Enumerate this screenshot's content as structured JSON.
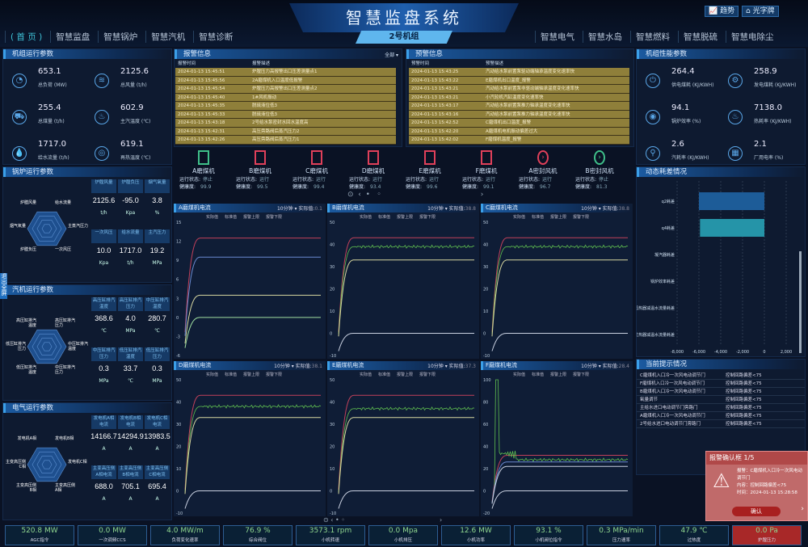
{
  "header": {
    "title": "智慧监盘系统",
    "unit": "2号机组",
    "buttons": [
      "趋势",
      "光字牌"
    ],
    "nav_left": [
      "( 首 页 )",
      "智慧监盘",
      "智慧锅炉",
      "智慧汽机",
      "智慧诊断"
    ],
    "nav_right": [
      "智慧电气",
      "智慧水岛",
      "智慧燃料",
      "智慧脱硫",
      "智慧电除尘"
    ]
  },
  "side_tab": "退出全屏",
  "unit_params": {
    "title": "机组运行参数",
    "items": [
      {
        "value": "653.1",
        "label": "总负荷 (MW)",
        "icon": "gauge-icon"
      },
      {
        "value": "2125.6",
        "label": "总风量 (t/h)",
        "icon": "wind-icon"
      },
      {
        "value": "255.4",
        "label": "总煤量 (t/h)",
        "icon": "coal-cart-icon"
      },
      {
        "value": "602.9",
        "label": "主汽温度 (℃)",
        "icon": "steam-icon"
      },
      {
        "value": "1717.0",
        "label": "给水流量 (t/h)",
        "icon": "water-drops-icon"
      },
      {
        "value": "619.1",
        "label": "再热温度 (℃)",
        "icon": "thermometer-icon"
      }
    ]
  },
  "boiler": {
    "title": "锅炉运行参数",
    "radar": [
      "炉膛风量",
      "给水流量",
      "主蒸汽压力",
      "一次风压",
      "炉膛负压",
      "烟气氧量"
    ],
    "cells": [
      {
        "h": "炉膛风量",
        "v": "2125.6",
        "u": "t/h"
      },
      {
        "h": "炉膛负压",
        "v": "-95.0",
        "u": "Kpa"
      },
      {
        "h": "烟气氧量",
        "v": "3.8",
        "u": "%"
      },
      {
        "h": "一次风压",
        "v": "10.0",
        "u": "Kpa"
      },
      {
        "h": "给水流量",
        "v": "1717.0",
        "u": "t/h"
      },
      {
        "h": "主汽压力",
        "v": "19.2",
        "u": "MPa"
      }
    ]
  },
  "turbine": {
    "title": "汽机运行参数",
    "radar": [
      "高压缸排汽温度",
      "高压缸排汽压力",
      "中压缸排汽温度",
      "中压缸排汽压力",
      "低压缸排汽温度",
      "低压缸排汽压力"
    ],
    "cells": [
      {
        "h": "高压缸排汽温度",
        "v": "368.6",
        "u": "℃"
      },
      {
        "h": "高压缸排汽压力",
        "v": "4.0",
        "u": "MPa"
      },
      {
        "h": "中压缸排汽温度",
        "v": "280.7",
        "u": "℃"
      },
      {
        "h": "中压缸排汽压力",
        "v": "0.3",
        "u": "MPa"
      },
      {
        "h": "低压缸排汽温度",
        "v": "33.7",
        "u": "℃"
      },
      {
        "h": "低压缸排汽压力",
        "v": "0.3",
        "u": "MPa"
      }
    ]
  },
  "electric": {
    "title": "电气运行参数",
    "radar": [
      "发电机A相",
      "发电机B相",
      "发电机C相",
      "主变高压侧A相",
      "主变高压侧B相",
      "主变高压侧C相"
    ],
    "cells": [
      {
        "h": "发电机A相电流",
        "v": "14166.7",
        "u": "A"
      },
      {
        "h": "发电机B相电流",
        "v": "14294.9",
        "u": "A"
      },
      {
        "h": "发电机C相电流",
        "v": "13983.5",
        "u": "A"
      },
      {
        "h": "主变高压侧A相电流",
        "v": "688.0",
        "u": "A"
      },
      {
        "h": "主变高压侧B相电流",
        "v": "705.1",
        "u": "A"
      },
      {
        "h": "主变高压侧C相电流",
        "v": "695.4",
        "u": "A"
      }
    ]
  },
  "alarms": {
    "title": "报警信息",
    "filter": "全部",
    "cols": [
      "报警时间",
      "报警描述"
    ],
    "rows": [
      [
        "2024-01-13 15:45:51",
        "炉膛压力高报警出口压差测量点1"
      ],
      [
        "2024-01-13 15:45:56",
        "2A磨煤机入口温度低报警"
      ],
      [
        "2024-01-13 15:45:54",
        "炉膛压力高报警出口压差测量点2"
      ],
      [
        "2024-01-13 15:45:40",
        "1#风机振动"
      ],
      [
        "2024-01-13 15:45:35",
        "脱硫液位低3"
      ],
      [
        "2024-01-13 15:45:33",
        "脱硫液位低3"
      ],
      [
        "2024-01-13 15:43:18",
        "2号给水泵密封水回水温度高"
      ],
      [
        "2024-01-13 15:42:31",
        "高压旁路阀后蒸汽压力2"
      ],
      [
        "2024-01-13 15:42:26",
        "高压旁路阀后蒸汽压力1"
      ]
    ]
  },
  "warnings": {
    "title": "预警信息",
    "cols": [
      "预警时间",
      "预警描述"
    ],
    "rows": [
      [
        "2024-01-13 15:43:25",
        "汽动给水泵前置泵驱动端轴承温度变化速率快"
      ],
      [
        "2024-01-13 15:43:22",
        "E磨煤机出口温度_报警"
      ],
      [
        "2024-01-13 15:43:21",
        "汽动给水泵前置泵非驱动端轴承温度变化速率快"
      ],
      [
        "2024-01-13 15:43:21",
        "小汽轮机汽缸温度变化速率快"
      ],
      [
        "2024-01-13 15:43:17",
        "汽动给水泵前置泵推力轴承温度变化速率快"
      ],
      [
        "2024-01-13 15:43:16",
        "汽动给水泵前置泵推力轴承温度变化速率快"
      ],
      [
        "2024-01-13 15:42:52",
        "C磨煤机出口温度_报警"
      ],
      [
        "2024-01-13 15:42:20",
        "A磨煤机电机振动偏差过大"
      ],
      [
        "2024-01-13 15:42:02",
        "F磨煤机温度_报警"
      ]
    ]
  },
  "devices": {
    "status_label": "运行状态:",
    "health_label": "健康度:",
    "items": [
      {
        "name": "A磨煤机",
        "status": "停止",
        "health": "99.9",
        "color": "#3fc08a",
        "icon": "coal-mill-icon"
      },
      {
        "name": "B磨煤机",
        "status": "运行",
        "health": "99.5",
        "color": "#e0405a",
        "icon": "coal-mill-icon"
      },
      {
        "name": "C磨煤机",
        "status": "运行",
        "health": "99.4",
        "color": "#e0405a",
        "icon": "coal-mill-icon"
      },
      {
        "name": "D磨煤机",
        "status": "运行",
        "health": "93.4",
        "color": "#e0405a",
        "icon": "coal-mill-icon"
      },
      {
        "name": "E磨煤机",
        "status": "运行",
        "health": "99.6",
        "color": "#e0405a",
        "icon": "coal-mill-icon"
      },
      {
        "name": "F磨煤机",
        "status": "运行",
        "health": "99.1",
        "color": "#e0405a",
        "icon": "coal-mill-icon"
      },
      {
        "name": "A密封风机",
        "status": "运行",
        "health": "96.7",
        "color": "#e0405a",
        "icon": "fan-icon"
      },
      {
        "name": "B密封风机",
        "status": "停止",
        "health": "81.3",
        "color": "#3fc08a",
        "icon": "fan-icon"
      }
    ]
  },
  "chart_legend": [
    "实际值",
    "标准值",
    "报警上限",
    "报警下限"
  ],
  "chart_period": "10分钟",
  "actual_label": "实际值:",
  "chart_data": [
    {
      "type": "line",
      "title": "A磨煤机电流",
      "actual": "0.1",
      "ylim": [
        -6,
        15
      ],
      "ticks": [
        -6,
        -3,
        0,
        3,
        6,
        9,
        12,
        15
      ],
      "series": [
        {
          "name": "报警上限",
          "level": 12.5,
          "color": "#c0405a"
        },
        {
          "name": "标准值",
          "level": 9.5,
          "color": "#6a8ad0"
        },
        {
          "name": "报警下限",
          "level": 3.5,
          "color": "#d8d8a0"
        },
        {
          "name": "实际值",
          "level": 0,
          "color": "#a0e0a0"
        }
      ]
    },
    {
      "type": "line",
      "title": "B磨煤机电流",
      "actual": "38.8",
      "ylim": [
        -10,
        50
      ],
      "ticks": [
        -10,
        0,
        10,
        20,
        30,
        40,
        50
      ],
      "series": [
        {
          "name": "报警上限",
          "level": 43,
          "color": "#c0405a"
        },
        {
          "name": "实际值",
          "level": 39,
          "color": "#60c050",
          "noise": true
        },
        {
          "name": "标准值",
          "level": 33,
          "color": "#d8d8a0"
        },
        {
          "name": "报警下限",
          "level": 0,
          "color": "#c8d0e0"
        }
      ]
    },
    {
      "type": "line",
      "title": "C磨煤机电流",
      "actual": "38.8",
      "ylim": [
        -10,
        50
      ],
      "ticks": [
        -10,
        0,
        10,
        20,
        30,
        40,
        50
      ],
      "series": [
        {
          "name": "报警上限",
          "level": 43,
          "color": "#c0405a"
        },
        {
          "name": "实际值",
          "level": 39,
          "color": "#60c050",
          "noise": true
        },
        {
          "name": "标准值",
          "level": 33,
          "color": "#d8d8a0"
        },
        {
          "name": "报警下限",
          "level": 0,
          "color": "#c8d0e0"
        }
      ]
    },
    {
      "type": "line",
      "title": "D磨煤机电流",
      "actual": "38.1",
      "ylim": [
        -10,
        50
      ],
      "ticks": [
        -10,
        0,
        10,
        20,
        30,
        40,
        50
      ],
      "series": [
        {
          "name": "报警上限",
          "level": 43,
          "color": "#c0405a"
        },
        {
          "name": "实际值",
          "level": 38,
          "color": "#60c050",
          "noise": true
        },
        {
          "name": "标准值",
          "level": 33,
          "color": "#d8d8a0"
        },
        {
          "name": "报警下限",
          "level": 0,
          "color": "#c8d0e0"
        }
      ]
    },
    {
      "type": "line",
      "title": "E磨煤机电流",
      "actual": "37.3",
      "ylim": [
        -10,
        50
      ],
      "ticks": [
        -10,
        0,
        10,
        20,
        30,
        40,
        50
      ],
      "series": [
        {
          "name": "报警上限",
          "level": 43,
          "color": "#c0405a"
        },
        {
          "name": "实际值",
          "level": 37,
          "color": "#60c050",
          "noise": true
        },
        {
          "name": "标准值",
          "level": 33,
          "color": "#d8d8a0"
        },
        {
          "name": "报警下限",
          "level": 0,
          "color": "#c8d0e0"
        }
      ]
    },
    {
      "type": "line",
      "title": "F磨煤机电流",
      "actual": "28.4",
      "ylim": [
        -20,
        100
      ],
      "ticks": [
        -20,
        0,
        20,
        40,
        60,
        80,
        100
      ],
      "series": [
        {
          "name": "报警上限",
          "level": 32,
          "color": "#c0405a"
        },
        {
          "name": "实际值",
          "level": 28,
          "color": "#60c050",
          "noise": true,
          "spike": 100
        },
        {
          "name": "标准值",
          "level": 26,
          "color": "#6a8ad0"
        },
        {
          "name": "报警下限",
          "level": 22,
          "color": "#c8d0e0"
        },
        {
          "name": "",
          "level": 0,
          "color": "#c8d0e0"
        }
      ]
    },
    {
      "type": "bar",
      "title": "动态耗差情况",
      "orientation": "horizontal",
      "categories": [
        "q2耗差",
        "q4耗差",
        "凝汽器耗差",
        "锅炉效率耗差",
        "再热器减温水流量耗差",
        "过热器减温水流量耗差"
      ],
      "values": [
        -6000,
        -5900,
        0,
        0,
        0,
        0
      ],
      "xlim": [
        -8000,
        2000
      ],
      "ticks": [
        "-8,000",
        "-6,000",
        "-4,000",
        "-2,000",
        "0",
        "2,000"
      ],
      "grid": true
    }
  ],
  "perf": {
    "title": "机组性能参数",
    "items": [
      {
        "value": "264.4",
        "label": "供电煤耗 (KJ/KWH)",
        "icon": "plug-icon"
      },
      {
        "value": "258.9",
        "label": "发电煤耗 (KJ/KWH)",
        "icon": "gear-icon"
      },
      {
        "value": "94.1",
        "label": "锅炉效率 (%)",
        "icon": "flame-drop-icon"
      },
      {
        "value": "7138.0",
        "label": "热耗率 (KJ/KWH)",
        "icon": "fire-icon"
      },
      {
        "value": "2.6",
        "label": "汽耗率 (KJ/KWH)",
        "icon": "steam-valve-icon"
      },
      {
        "value": "2.1",
        "label": "厂用电率 (%)",
        "icon": "factory-icon"
      }
    ]
  },
  "prompts": {
    "title": "当前提示情况",
    "rows": [
      [
        "C磨煤机入口冷一次风电动调节门",
        "控制回路偏差<75"
      ],
      [
        "F磨煤机入口冷一次风电动调节门",
        "控制回路偏差<75"
      ],
      [
        "B磨煤机入口冷一次风电动调节门",
        "控制回路偏差<75"
      ],
      [
        "氧量调节",
        "控制回路偏差<75"
      ],
      [
        "主给水进口电动调节门旁路门",
        "控制回路偏差<75"
      ],
      [
        "A磨煤机入口冷一次风电动调节门",
        "控制回路偏差<75"
      ],
      [
        "2号给水进口电动调节门旁路门",
        "控制回路偏差<75"
      ]
    ]
  },
  "bottom": [
    {
      "v": "520.8 MW",
      "l": "AGC指令"
    },
    {
      "v": "0.0 MW",
      "l": "一次调频CCS"
    },
    {
      "v": "4.0 MW/m",
      "l": "负荷变化速率"
    },
    {
      "v": "76.9 %",
      "l": "综合阀位"
    },
    {
      "v": "3573.1 rpm",
      "l": "小机转速"
    },
    {
      "v": "0.0 Mpa",
      "l": "小机排压"
    },
    {
      "v": "12.6 MW",
      "l": "小机功率"
    },
    {
      "v": "93.1 %",
      "l": "小机阀位指令"
    },
    {
      "v": "0.3 MPa/min",
      "l": "压力速率"
    },
    {
      "v": "47.9 ℃",
      "l": "过热度"
    },
    {
      "v": "0.0 Pa",
      "l": "炉膛压力"
    }
  ],
  "popup": {
    "title": "报警确认框 1/5",
    "alarm": "报警：C磨煤机入口冷一次风电动调节门",
    "content": "内容：控制回路偏差<75",
    "time": "时间：2024-01-13 15:28:58",
    "confirm": "确认"
  }
}
